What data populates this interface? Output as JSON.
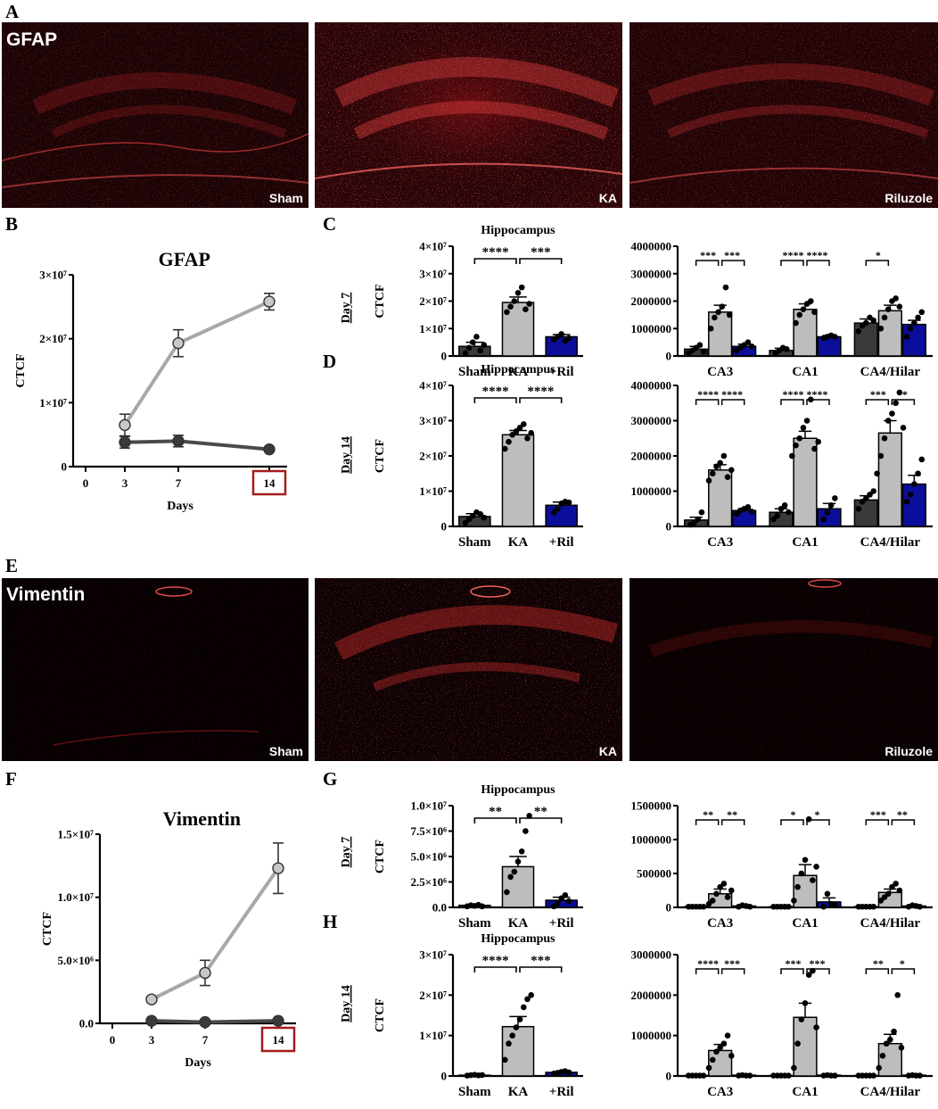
{
  "colors": {
    "sham": "#3a3a3a",
    "ka": "#bdbdbd",
    "ril": "#0b0e9a",
    "ka_line": "#a8a8a8",
    "sham_line": "#4a4a4a",
    "highlight": "#a41c1c"
  },
  "panels": {
    "A": "A",
    "B": "B",
    "C": "C",
    "D": "D",
    "E": "E",
    "F": "F",
    "G": "G",
    "H": "H"
  },
  "micrographs": {
    "gfap": {
      "stain": "GFAP",
      "labels": [
        "Sham",
        "KA",
        "Riluzole"
      ]
    },
    "vimentin": {
      "stain": "Vimentin",
      "labels": [
        "Sham",
        "KA",
        "Riluzole"
      ]
    }
  },
  "rows": {
    "C": "Day 7",
    "D": "Day 14",
    "G": "Day 7",
    "H": "Day 14"
  },
  "chart_data": [
    {
      "id": "B",
      "type": "line",
      "title": "GFAP",
      "xlabel": "Days",
      "ylabel": "CTCF",
      "x_ticks": [
        "0",
        "3",
        "7",
        "14"
      ],
      "highlighted_tick": "14",
      "y_ticks": [
        "0",
        "1×10⁷",
        "2×10⁷",
        "3×10⁷"
      ],
      "ylim": [
        0,
        30000000
      ],
      "series": [
        {
          "key": "ka",
          "x": [
            3,
            7,
            14
          ],
          "y": [
            6500000,
            19300000,
            25800000
          ],
          "err": [
            1700000,
            2100000,
            1300000
          ]
        },
        {
          "key": "sham",
          "x": [
            3,
            7,
            14
          ],
          "y": [
            3800000,
            4000000,
            2700000
          ],
          "err": [
            900000,
            900000,
            300000
          ]
        }
      ]
    },
    {
      "id": "C-hippo",
      "type": "bar",
      "title": "Hippocampus",
      "ylabel": "CTCF",
      "categories": [
        "Sham",
        "KA",
        "+Ril"
      ],
      "y_ticks": [
        "0",
        "1×10⁷",
        "2×10⁷",
        "3×10⁷",
        "4×10⁷"
      ],
      "ylim": [
        0,
        40000000
      ],
      "values": [
        3500000,
        19500000,
        7000000
      ],
      "errors": [
        1500000,
        2000000,
        800000
      ],
      "points": [
        [
          1000000,
          3000000,
          5000000,
          7000000,
          2000000,
          4000000
        ],
        [
          16000000,
          18000000,
          20000000,
          23000000,
          25000000,
          17000000,
          19000000
        ],
        [
          6000000,
          7000000,
          8000000,
          5500000,
          6500000
        ]
      ],
      "significance": [
        {
          "label": "****",
          "from": 0,
          "to": 1
        },
        {
          "label": "***",
          "from": 1,
          "to": 2
        }
      ]
    },
    {
      "id": "C-regions",
      "type": "bar",
      "groups": [
        "CA3",
        "CA1",
        "CA4/Hilar"
      ],
      "y_ticks": [
        "0",
        "1000000",
        "2000000",
        "3000000",
        "4000000"
      ],
      "ylim": [
        0,
        4000000
      ],
      "values": [
        [
          250000,
          1600000,
          350000
        ],
        [
          200000,
          1700000,
          700000
        ],
        [
          1200000,
          1650000,
          1150000
        ]
      ],
      "errors": [
        [
          100000,
          250000,
          80000
        ],
        [
          80000,
          200000,
          50000
        ],
        [
          150000,
          200000,
          150000
        ]
      ],
      "points": [
        [
          [
            100000,
            200000,
            300000,
            400000,
            150000
          ],
          [
            1000000,
            1400000,
            1600000,
            1800000,
            2500000,
            1500000
          ],
          [
            200000,
            300000,
            400000,
            500000,
            350000
          ]
        ],
        [
          [
            100000,
            200000,
            300000,
            250000
          ],
          [
            1200000,
            1500000,
            1700000,
            1900000,
            2000000,
            1600000
          ],
          [
            650000,
            700000,
            750000,
            700000
          ]
        ],
        [
          [
            900000,
            1100000,
            1200000,
            1400000,
            1300000
          ],
          [
            1000000,
            1400000,
            1700000,
            2000000,
            2100000,
            1800000
          ],
          [
            700000,
            1000000,
            1200000,
            1400000,
            1600000
          ]
        ]
      ],
      "significance": [
        {
          "group": 0,
          "left": "***",
          "right": "***"
        },
        {
          "group": 1,
          "left": "****",
          "right": "****"
        },
        {
          "group": 2,
          "left": "*",
          "right": ""
        }
      ]
    },
    {
      "id": "D-hippo",
      "type": "bar",
      "title": "Hippocampus",
      "ylabel": "CTCF",
      "categories": [
        "Sham",
        "KA",
        "+Ril"
      ],
      "y_ticks": [
        "0",
        "1×10⁷",
        "2×10⁷",
        "3×10⁷",
        "4×10⁷"
      ],
      "ylim": [
        0,
        40000000
      ],
      "values": [
        2800000,
        26000000,
        6000000
      ],
      "errors": [
        800000,
        1200000,
        900000
      ],
      "points": [
        [
          1000000,
          2000000,
          3000000,
          4000000,
          3500000,
          2500000
        ],
        [
          22000000,
          24000000,
          26000000,
          27000000,
          28000000,
          29000000,
          25000000,
          26500000
        ],
        [
          4000000,
          5000000,
          6500000,
          7000000,
          6800000
        ]
      ],
      "significance": [
        {
          "label": "****",
          "from": 0,
          "to": 1
        },
        {
          "label": "****",
          "from": 1,
          "to": 2
        }
      ]
    },
    {
      "id": "D-regions",
      "type": "bar",
      "groups": [
        "CA3",
        "CA1",
        "CA4/Hilar"
      ],
      "y_ticks": [
        "0",
        "1000000",
        "2000000",
        "3000000",
        "4000000"
      ],
      "ylim": [
        0,
        4000000
      ],
      "values": [
        [
          180000,
          1600000,
          450000
        ],
        [
          400000,
          2500000,
          500000
        ],
        [
          750000,
          2650000,
          1200000
        ]
      ],
      "errors": [
        [
          80000,
          150000,
          50000
        ],
        [
          100000,
          200000,
          150000
        ],
        [
          120000,
          350000,
          250000
        ]
      ],
      "points": [
        [
          [
            50000,
            100000,
            200000,
            400000
          ],
          [
            1300000,
            1500000,
            1700000,
            1800000,
            2000000,
            1400000,
            1600000
          ],
          [
            350000,
            450000,
            500000,
            550000,
            420000
          ]
        ],
        [
          [
            200000,
            300000,
            500000,
            600000,
            400000
          ],
          [
            2000000,
            2300000,
            2500000,
            2800000,
            3000000,
            3600000,
            2200000,
            2400000
          ],
          [
            200000,
            400000,
            600000,
            800000
          ]
        ],
        [
          [
            500000,
            700000,
            800000,
            900000,
            1000000
          ],
          [
            1500000,
            2000000,
            2500000,
            3000000,
            3200000,
            3500000,
            3800000,
            2800000
          ],
          [
            700000,
            900000,
            1200000,
            1500000,
            1900000
          ]
        ]
      ],
      "significance": [
        {
          "group": 0,
          "left": "****",
          "right": "****"
        },
        {
          "group": 1,
          "left": "****",
          "right": "****"
        },
        {
          "group": 2,
          "left": "***",
          "right": "**"
        }
      ]
    },
    {
      "id": "F",
      "type": "line",
      "title": "Vimentin",
      "xlabel": "Days",
      "ylabel": "CTCF",
      "x_ticks": [
        "0",
        "3",
        "7",
        "14"
      ],
      "highlighted_tick": "14",
      "y_ticks": [
        "0.0",
        "5.0×10⁶",
        "1.0×10⁷",
        "1.5×10⁷"
      ],
      "ylim": [
        0,
        15000000
      ],
      "series": [
        {
          "key": "ka",
          "x": [
            3,
            7,
            14
          ],
          "y": [
            1900000,
            4000000,
            12300000
          ],
          "err": [
            200000,
            1000000,
            2000000
          ]
        },
        {
          "key": "sham",
          "x": [
            3,
            7,
            14
          ],
          "y": [
            200000,
            100000,
            200000
          ],
          "err": [
            50000,
            50000,
            50000
          ]
        }
      ]
    },
    {
      "id": "G-hippo",
      "type": "bar",
      "title": "Hippocampus",
      "ylabel": "CTCF",
      "categories": [
        "Sham",
        "KA",
        "+Ril"
      ],
      "y_ticks": [
        "0.0",
        "2.5×10⁶",
        "5.0×10⁶",
        "7.5×10⁶",
        "1.0×10⁷"
      ],
      "ylim": [
        0,
        10000000
      ],
      "values": [
        200000,
        4000000,
        700000
      ],
      "errors": [
        50000,
        1000000,
        300000
      ],
      "points": [
        [
          100000,
          200000,
          150000,
          250000,
          100000
        ],
        [
          1500000,
          3000000,
          3500000,
          4500000,
          5500000,
          7500000,
          9000000
        ],
        [
          100000,
          400000,
          900000,
          1200000,
          600000
        ]
      ],
      "significance": [
        {
          "label": "**",
          "from": 0,
          "to": 1
        },
        {
          "label": "**",
          "from": 1,
          "to": 2
        }
      ]
    },
    {
      "id": "G-regions",
      "type": "bar",
      "groups": [
        "CA3",
        "CA1",
        "CA4/Hilar"
      ],
      "y_ticks": [
        "0",
        "500000",
        "1000000",
        "1500000"
      ],
      "ylim": [
        0,
        1500000
      ],
      "values": [
        [
          10000,
          200000,
          20000
        ],
        [
          10000,
          470000,
          80000
        ],
        [
          10000,
          220000,
          20000
        ]
      ],
      "errors": [
        [
          5000,
          70000,
          10000
        ],
        [
          5000,
          160000,
          60000
        ],
        [
          5000,
          50000,
          10000
        ]
      ],
      "points": [
        [
          [
            10000,
            10000,
            10000,
            10000,
            10000
          ],
          [
            50000,
            100000,
            200000,
            300000,
            350000,
            150000,
            250000
          ],
          [
            10000,
            30000,
            20000,
            10000
          ]
        ],
        [
          [
            10000,
            10000,
            10000,
            10000,
            10000
          ],
          [
            100000,
            300000,
            500000,
            700000,
            1300000,
            400000,
            600000
          ],
          [
            10000,
            200000,
            50000,
            30000
          ]
        ],
        [
          [
            10000,
            10000,
            10000,
            10000,
            10000
          ],
          [
            100000,
            150000,
            200000,
            300000,
            350000,
            250000
          ],
          [
            10000,
            30000,
            20000,
            10000
          ]
        ]
      ],
      "significance": [
        {
          "group": 0,
          "left": "**",
          "right": "**"
        },
        {
          "group": 1,
          "left": "*",
          "right": "*"
        },
        {
          "group": 2,
          "left": "***",
          "right": "**"
        }
      ]
    },
    {
      "id": "H-hippo",
      "type": "bar",
      "title": "Hippocampus",
      "ylabel": "CTCF",
      "categories": [
        "Sham",
        "KA",
        "+Ril"
      ],
      "y_ticks": [
        "0",
        "1×10⁷",
        "2×10⁷",
        "3×10⁷"
      ],
      "ylim": [
        0,
        30000000
      ],
      "values": [
        200000,
        12200000,
        900000
      ],
      "errors": [
        100000,
        2500000,
        200000
      ],
      "points": [
        [
          100000,
          200000,
          300000,
          150000,
          250000
        ],
        [
          4000000,
          8000000,
          10000000,
          12000000,
          14000000,
          17000000,
          19000000,
          20000000
        ],
        [
          600000,
          800000,
          1000000,
          1200000,
          900000
        ]
      ],
      "significance": [
        {
          "label": "****",
          "from": 0,
          "to": 1
        },
        {
          "label": "***",
          "from": 1,
          "to": 2
        }
      ]
    },
    {
      "id": "H-regions",
      "type": "bar",
      "groups": [
        "CA3",
        "CA1",
        "CA4/Hilar"
      ],
      "y_ticks": [
        "0",
        "1000000",
        "2000000",
        "3000000"
      ],
      "ylim": [
        0,
        3000000
      ],
      "values": [
        [
          10000,
          630000,
          20000
        ],
        [
          10000,
          1450000,
          20000
        ],
        [
          10000,
          800000,
          20000
        ]
      ],
      "errors": [
        [
          5000,
          150000,
          10000
        ],
        [
          5000,
          350000,
          10000
        ],
        [
          5000,
          230000,
          10000
        ]
      ],
      "points": [
        [
          [
            10000,
            10000,
            10000,
            10000,
            10000
          ],
          [
            200000,
            400000,
            600000,
            700000,
            800000,
            1000000,
            500000
          ],
          [
            10000,
            20000,
            10000,
            10000
          ]
        ],
        [
          [
            10000,
            10000,
            10000,
            10000,
            10000
          ],
          [
            200000,
            800000,
            1400000,
            1800000,
            2500000,
            2600000,
            1200000
          ],
          [
            10000,
            20000,
            10000,
            10000
          ]
        ],
        [
          [
            10000,
            10000,
            10000,
            10000,
            10000
          ],
          [
            200000,
            500000,
            800000,
            900000,
            1100000,
            2000000,
            700000
          ],
          [
            10000,
            20000,
            10000,
            10000
          ]
        ]
      ],
      "significance": [
        {
          "group": 0,
          "left": "****",
          "right": "***"
        },
        {
          "group": 1,
          "left": "***",
          "right": "***"
        },
        {
          "group": 2,
          "left": "**",
          "right": "*"
        }
      ]
    }
  ]
}
